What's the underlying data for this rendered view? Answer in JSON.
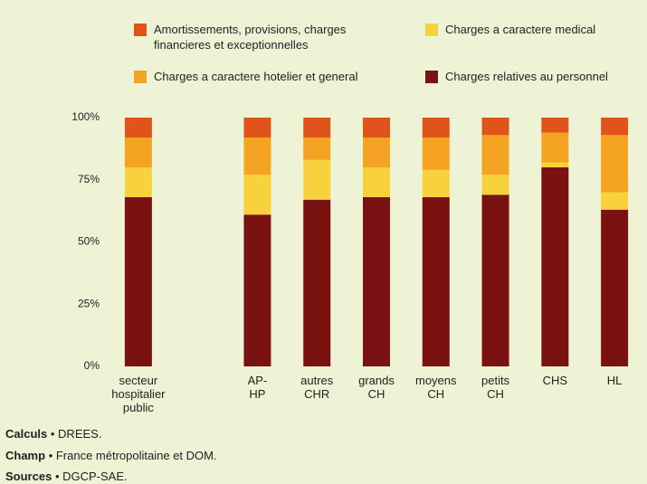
{
  "chart_data": {
    "type": "stacked-bar",
    "categories": [
      "secteur hospitalier public",
      null,
      "AP-HP",
      "autres CHR",
      "grands CH",
      "moyens CH",
      "petits CH",
      "CHS",
      "HL"
    ],
    "series": [
      {
        "name": "Charges relatives au personnel",
        "color": "#7a1212",
        "values": [
          68,
          null,
          61,
          67,
          68,
          68,
          69,
          80,
          63
        ]
      },
      {
        "name": "Charges a caractere medical",
        "color": "#f8d23c",
        "values": [
          12,
          null,
          16,
          16,
          12,
          11,
          8,
          2,
          7
        ]
      },
      {
        "name": "Charges a caractere hotelier et general",
        "color": "#f4a322",
        "values": [
          12,
          null,
          15,
          9,
          12,
          13,
          16,
          12,
          23
        ]
      },
      {
        "name": "Amortissements, provisions, charges financieres et exceptionnelles",
        "color": "#e0541c",
        "values": [
          8,
          null,
          8,
          8,
          8,
          8,
          7,
          6,
          7
        ]
      }
    ],
    "ylim": [
      0,
      100
    ],
    "yticks": [
      {
        "value": 0,
        "label": "0%"
      },
      {
        "value": 25,
        "label": "25%"
      },
      {
        "value": 50,
        "label": "50%"
      },
      {
        "value": 75,
        "label": "75%"
      },
      {
        "value": 100,
        "label": "100%"
      }
    ],
    "notes": [
      {
        "label": "Calculs",
        "text": "• DREES."
      },
      {
        "label": "Champ",
        "text": "• France métropolitaine et DOM."
      },
      {
        "label": "Sources",
        "text": "• DGCP-SAE."
      }
    ]
  }
}
